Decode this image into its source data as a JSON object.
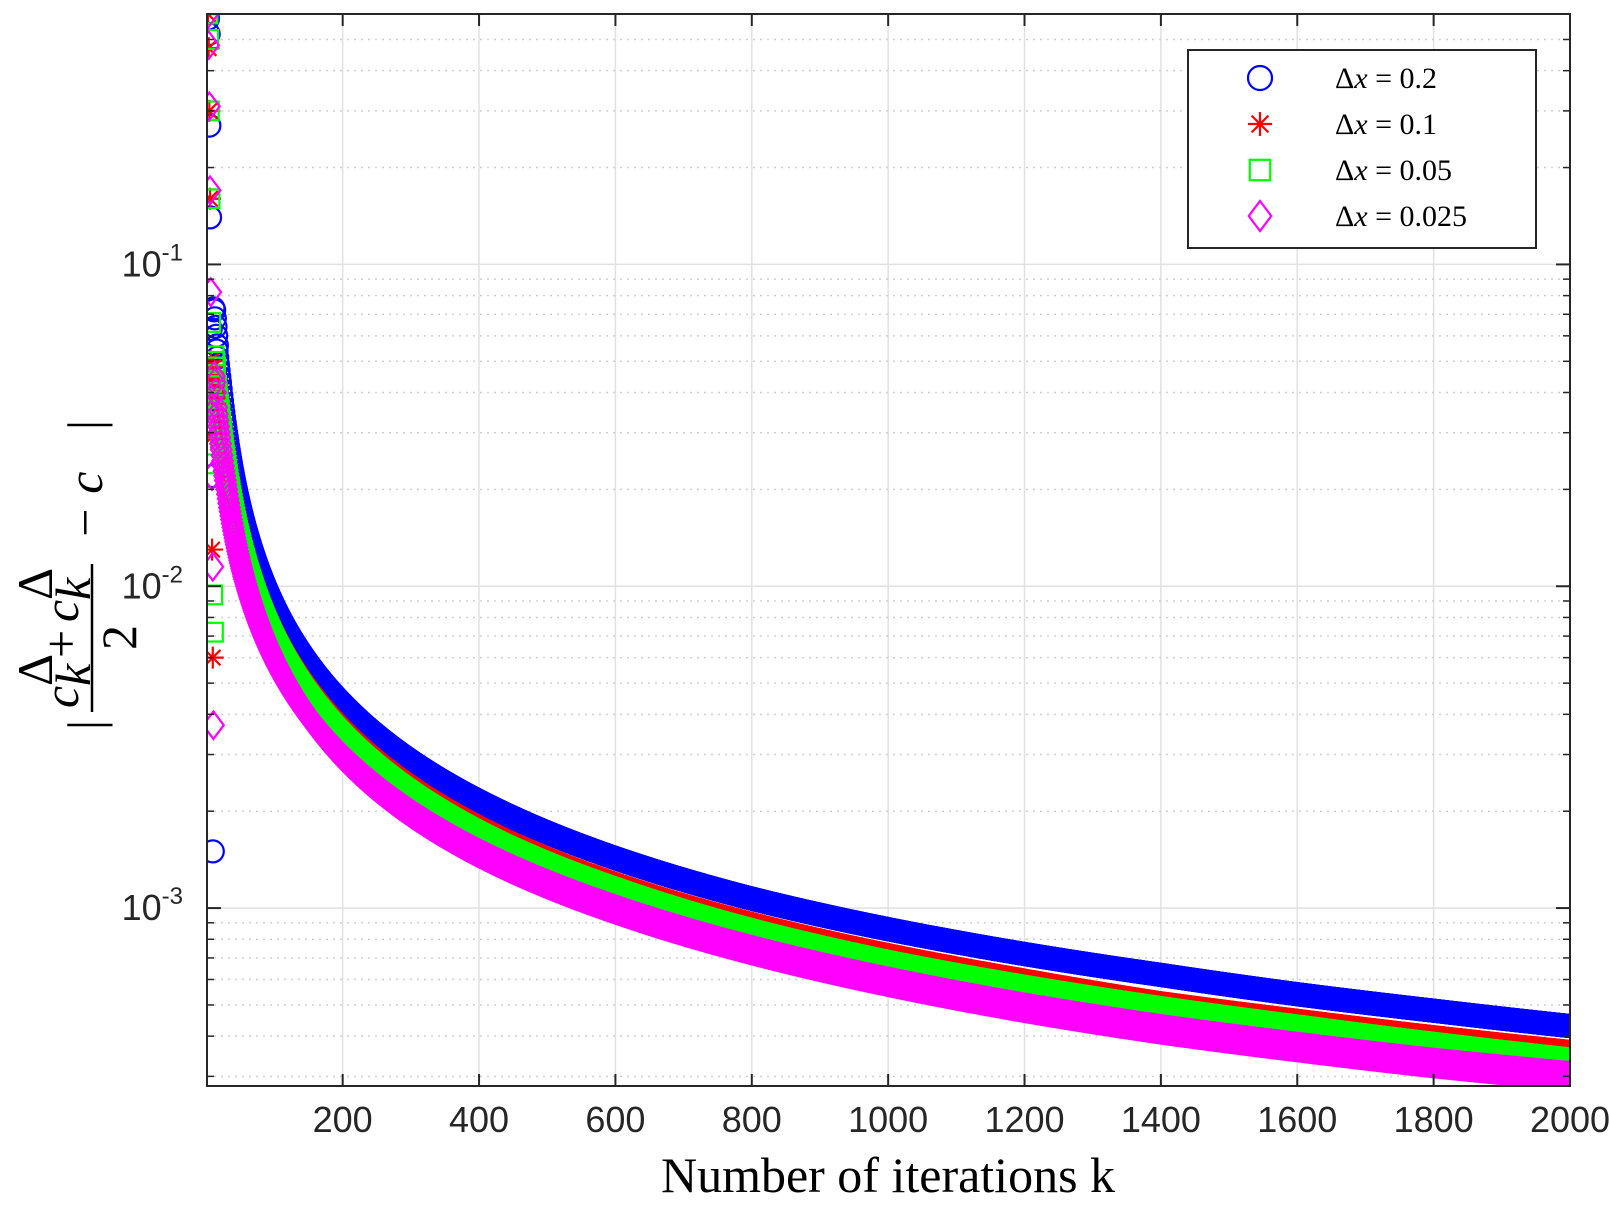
{
  "chart_data": {
    "type": "scatter",
    "title": "",
    "xlabel": "Number of iterations k",
    "ylabel": "|(c̄ₖᐞ + c̲ₖᐞ)/2 − c|",
    "ylabel_parts": {
      "open": "|",
      "num_a": "c",
      "num_a_sup": "Δ",
      "num_a_sub": "k",
      "plus": "+",
      "num_b": "c",
      "num_b_sup": "Δ",
      "num_b_sub": "k",
      "den": "2",
      "minus": "− c",
      "close": "|"
    },
    "xlim": [
      1,
      2000
    ],
    "ylim": [
      0.00028,
      0.6
    ],
    "yscale": "log",
    "grid": true,
    "minor_grid": true,
    "legend_position": "top-right",
    "x_ticks": [
      "200",
      "400",
      "600",
      "800",
      "1000",
      "1200",
      "1400",
      "1600",
      "1800",
      "2000"
    ],
    "y_ticks": [
      {
        "base": "10",
        "exp": "-1",
        "value": 0.1
      },
      {
        "base": "10",
        "exp": "-2",
        "value": 0.01
      },
      {
        "base": "10",
        "exp": "-3",
        "value": 0.001
      }
    ],
    "series": [
      {
        "name": "Δx = 0.2",
        "name_parts": {
          "delta": "Δ",
          "var": "x",
          "eq": " = 0.2"
        },
        "marker": "circle",
        "color": "#0000ff",
        "early_points": [
          [
            1,
            0.58
          ],
          [
            2,
            0.52
          ],
          [
            3,
            0.27
          ],
          [
            4,
            0.14
          ],
          [
            5,
            0.063
          ],
          [
            6,
            0.038
          ],
          [
            7,
            0.022
          ],
          [
            8,
            0.0015
          ],
          [
            9,
            0.073
          ],
          [
            10,
            0.072
          ],
          [
            11,
            0.068
          ],
          [
            12,
            0.064
          ],
          [
            13,
            0.06
          ],
          [
            14,
            0.056
          ]
        ],
        "curve_points": [
          [
            15,
            0.054
          ],
          [
            20,
            0.043
          ],
          [
            30,
            0.029
          ],
          [
            50,
            0.0173
          ],
          [
            100,
            0.0086
          ],
          [
            200,
            0.0043
          ],
          [
            400,
            0.00215
          ],
          [
            600,
            0.00143
          ],
          [
            800,
            0.00107
          ],
          [
            1000,
            0.00086
          ],
          [
            1200,
            0.00072
          ],
          [
            1400,
            0.00062
          ],
          [
            1600,
            0.00054
          ],
          [
            1800,
            0.00048
          ],
          [
            2000,
            0.00043
          ]
        ]
      },
      {
        "name": "Δx = 0.1",
        "name_parts": {
          "delta": "Δ",
          "var": "x",
          "eq": " = 0.1"
        },
        "marker": "asterisk",
        "color": "#ff0000",
        "early_points": [
          [
            1,
            0.6
          ],
          [
            2,
            0.47
          ],
          [
            3,
            0.3
          ],
          [
            4,
            0.16
          ],
          [
            5,
            0.05
          ],
          [
            6,
            0.029
          ],
          [
            7,
            0.013
          ],
          [
            8,
            0.006
          ],
          [
            9,
            0.048
          ],
          [
            10,
            0.046
          ],
          [
            11,
            0.044
          ],
          [
            12,
            0.042
          ]
        ],
        "curve_points": [
          [
            15,
            0.044
          ],
          [
            20,
            0.036
          ],
          [
            30,
            0.024
          ],
          [
            50,
            0.0143
          ],
          [
            100,
            0.0072
          ],
          [
            200,
            0.0036
          ],
          [
            400,
            0.0018
          ],
          [
            600,
            0.0012
          ],
          [
            800,
            0.0009
          ],
          [
            1000,
            0.00072
          ],
          [
            1200,
            0.0006
          ],
          [
            1400,
            0.00051
          ],
          [
            1600,
            0.00045
          ],
          [
            1800,
            0.0004
          ],
          [
            2000,
            0.00036
          ]
        ]
      },
      {
        "name": "Δx = 0.05",
        "name_parts": {
          "delta": "Δ",
          "var": "x",
          "eq": " = 0.05"
        },
        "marker": "square",
        "color": "#00ff00",
        "early_points": [
          [
            1,
            0.6
          ],
          [
            2,
            0.5
          ],
          [
            3,
            0.3
          ],
          [
            4,
            0.16
          ],
          [
            5,
            0.066
          ],
          [
            6,
            0.043
          ],
          [
            7,
            0.024
          ],
          [
            8,
            0.0094
          ],
          [
            9,
            0.0072
          ],
          [
            10,
            0.052
          ],
          [
            11,
            0.05
          ],
          [
            12,
            0.048
          ]
        ],
        "curve_points": [
          [
            15,
            0.042
          ],
          [
            20,
            0.034
          ],
          [
            30,
            0.023
          ],
          [
            50,
            0.0137
          ],
          [
            100,
            0.0068
          ],
          [
            200,
            0.0034
          ],
          [
            400,
            0.0017
          ],
          [
            600,
            0.00114
          ],
          [
            800,
            0.00085
          ],
          [
            1000,
            0.00068
          ],
          [
            1200,
            0.00057
          ],
          [
            1400,
            0.00049
          ],
          [
            1600,
            0.00043
          ],
          [
            1800,
            0.00038
          ],
          [
            2000,
            0.00034
          ]
        ]
      },
      {
        "name": "Δx = 0.025",
        "name_parts": {
          "delta": "Δ",
          "var": "x",
          "eq": " = 0.025"
        },
        "marker": "diamond",
        "color": "#ff00ff",
        "early_points": [
          [
            1,
            0.6
          ],
          [
            2,
            0.48
          ],
          [
            3,
            0.31
          ],
          [
            4,
            0.17
          ],
          [
            5,
            0.082
          ],
          [
            6,
            0.036
          ],
          [
            7,
            0.022
          ],
          [
            8,
            0.0115
          ],
          [
            9,
            0.0037
          ],
          [
            10,
            0.045
          ],
          [
            11,
            0.043
          ],
          [
            12,
            0.04
          ]
        ],
        "curve_points": [
          [
            15,
            0.036
          ],
          [
            20,
            0.029
          ],
          [
            30,
            0.02
          ],
          [
            50,
            0.0118
          ],
          [
            100,
            0.0059
          ],
          [
            200,
            0.00295
          ],
          [
            400,
            0.00148
          ],
          [
            600,
            0.00099
          ],
          [
            800,
            0.00074
          ],
          [
            1000,
            0.00059
          ],
          [
            1200,
            0.00049
          ],
          [
            1400,
            0.00042
          ],
          [
            1600,
            0.00037
          ],
          [
            1800,
            0.00033
          ],
          [
            2000,
            0.0003
          ]
        ]
      }
    ]
  }
}
